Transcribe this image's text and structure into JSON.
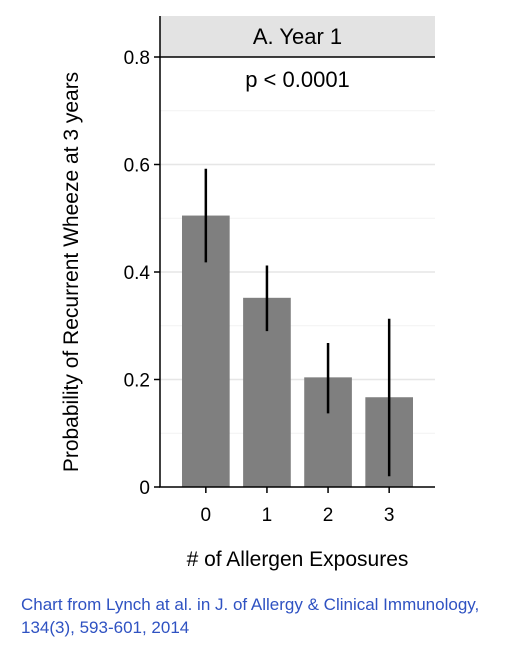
{
  "chart_data": {
    "type": "bar",
    "panel_title": "A. Year 1",
    "annotation": "p < 0.0001",
    "xlabel": "# of Allergen Exposures",
    "ylabel": "Probability of Recurrent Wheeze at 3 years",
    "categories": [
      "0",
      "1",
      "2",
      "3"
    ],
    "values": [
      0.505,
      0.352,
      0.204,
      0.167
    ],
    "error_bars": [
      {
        "low": 0.418,
        "high": 0.592
      },
      {
        "low": 0.29,
        "high": 0.412
      },
      {
        "low": 0.137,
        "high": 0.268
      },
      {
        "low": 0.02,
        "high": 0.313
      }
    ],
    "ylim": [
      0,
      0.8
    ],
    "yticks": [
      0,
      0.2,
      0.4,
      0.6,
      0.8
    ],
    "ytick_labels": [
      "0",
      "0.2",
      "0.4",
      "0.6",
      "0.8"
    ],
    "grid": true,
    "colors": {
      "bar": "#7f7f7f",
      "error": "#000000",
      "grid": "#e6e6e6",
      "strip": "#e3e3e3"
    }
  },
  "caption": "Chart from Lynch at al. in J. of Allergy & Clinical Immunology, 134(3), 593-601, 2014"
}
